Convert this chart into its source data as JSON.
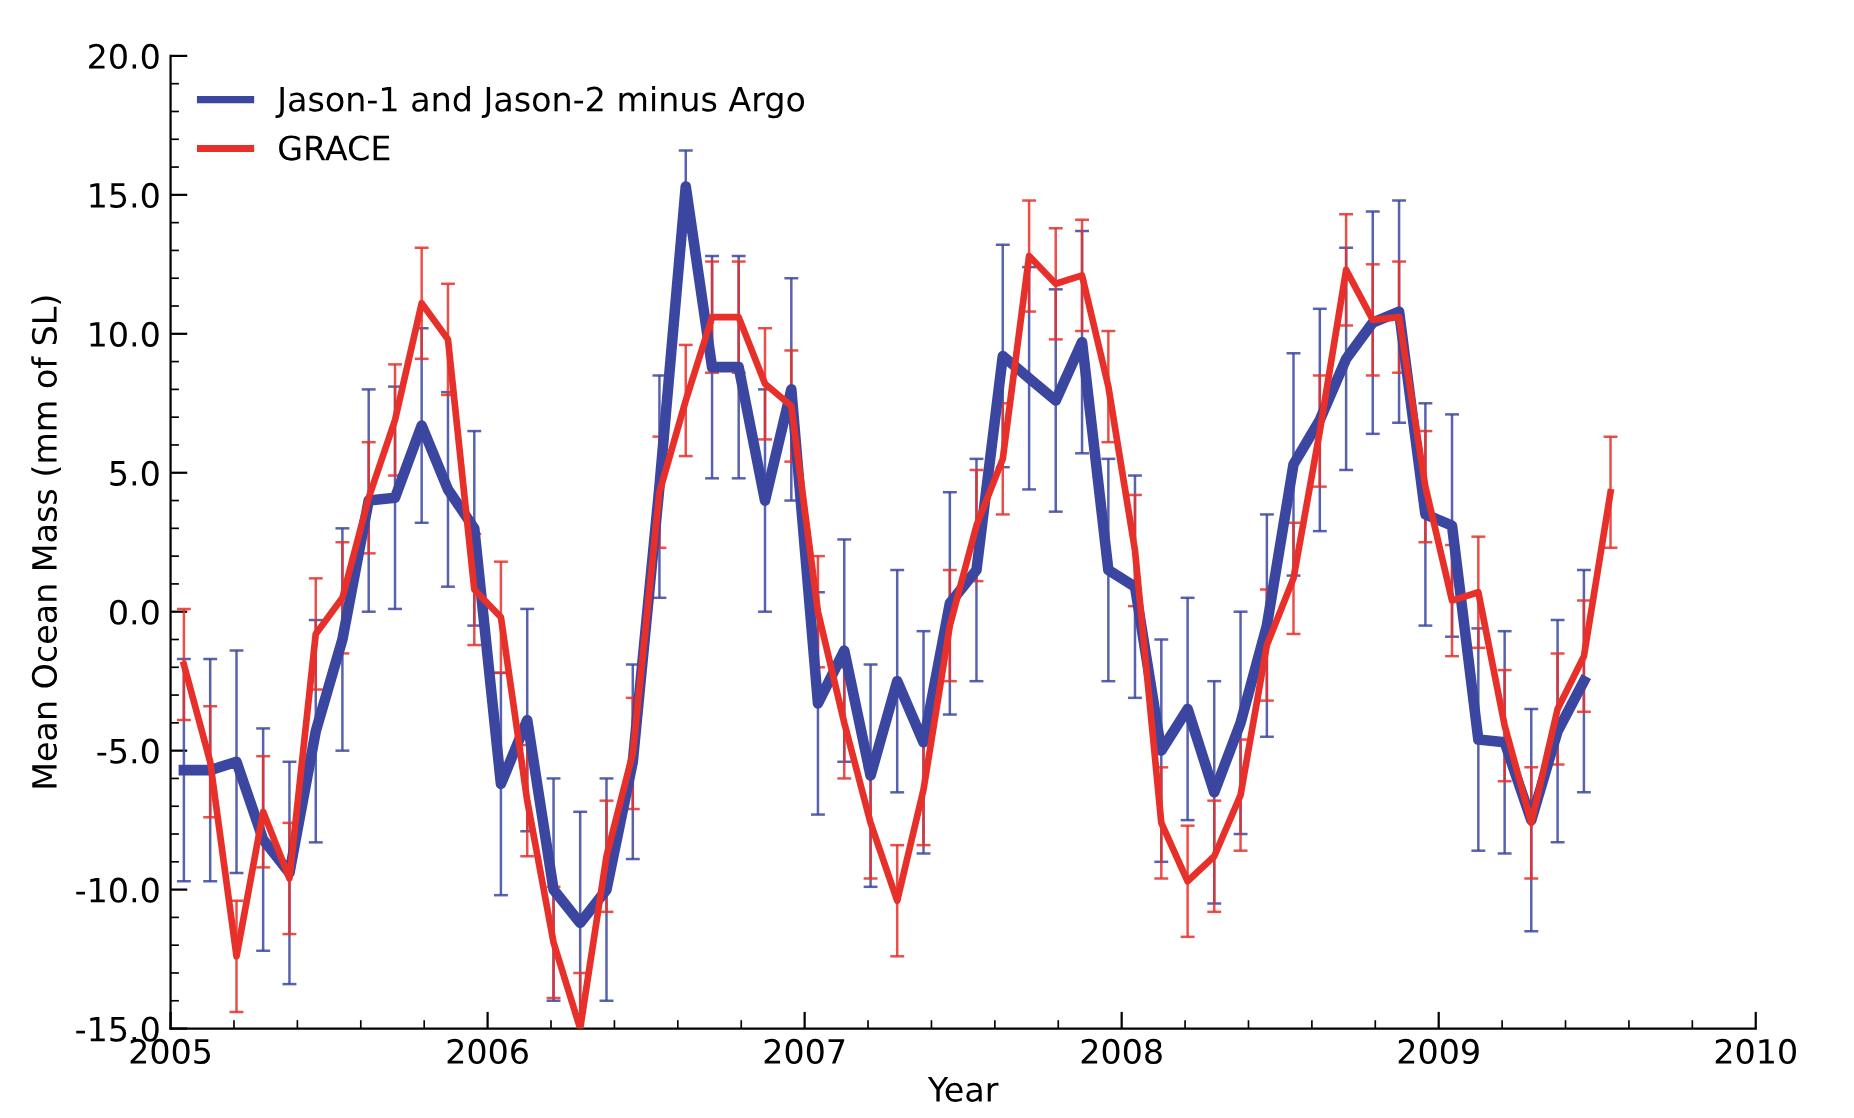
{
  "chart_data": {
    "type": "line",
    "xlabel": "Year",
    "ylabel": "Mean Ocean Mass (mm of SL)",
    "xlim": [
      2005,
      2010
    ],
    "xticks": [
      2005,
      2006,
      2007,
      2008,
      2009,
      2010
    ],
    "ylim": [
      -15,
      20
    ],
    "yticks": [
      {
        "value": -15,
        "label": "-15.0"
      },
      {
        "value": -10,
        "label": "-10.0"
      },
      {
        "value": -5,
        "label": "-5.0"
      },
      {
        "value": 0,
        "label": "0.0"
      },
      {
        "value": 5,
        "label": "5.0"
      },
      {
        "value": 10,
        "label": "10.0"
      },
      {
        "value": 15,
        "label": "15.0"
      },
      {
        "value": 20,
        "label": "20.0"
      }
    ],
    "grid": false,
    "legend": "top left",
    "marker": "none",
    "line_style": "solid",
    "series": [
      {
        "name": "Jason-1 and Jason-2 minus Argo",
        "color": "#3b46a0",
        "x": [
          2005.042,
          2005.125,
          2005.208,
          2005.292,
          2005.375,
          2005.458,
          2005.542,
          2005.625,
          2005.708,
          2005.792,
          2005.875,
          2005.958,
          2006.042,
          2006.125,
          2006.208,
          2006.292,
          2006.375,
          2006.458,
          2006.542,
          2006.625,
          2006.708,
          2006.792,
          2006.875,
          2006.958,
          2007.042,
          2007.125,
          2007.208,
          2007.292,
          2007.375,
          2007.458,
          2007.542,
          2007.625,
          2007.708,
          2007.792,
          2007.875,
          2007.958,
          2008.042,
          2008.125,
          2008.208,
          2008.292,
          2008.375,
          2008.458,
          2008.542,
          2008.625,
          2008.708,
          2008.792,
          2008.875,
          2008.958,
          2009.042,
          2009.125,
          2009.208,
          2009.292,
          2009.375,
          2009.458
        ],
        "values": [
          -5.7,
          -5.7,
          -5.4,
          -8.2,
          -9.4,
          -4.3,
          -1.0,
          4.0,
          4.1,
          6.7,
          4.4,
          3.0,
          -6.2,
          -3.9,
          -10.0,
          -11.2,
          -10.0,
          -5.4,
          4.5,
          15.3,
          8.8,
          8.8,
          4.0,
          8.0,
          -3.3,
          -1.4,
          -5.9,
          -2.5,
          -4.7,
          0.3,
          1.5,
          9.2,
          8.4,
          7.6,
          9.7,
          1.5,
          0.9,
          -5.0,
          -3.5,
          -6.5,
          -4.0,
          -0.5,
          5.3,
          6.9,
          9.1,
          10.4,
          10.8,
          3.5,
          3.1,
          -4.6,
          -4.7,
          -7.5,
          -4.3,
          -2.5
        ],
        "errors": [
          4,
          4,
          4,
          4,
          4,
          4,
          4,
          4,
          4,
          3.5,
          3.5,
          3.5,
          4,
          4,
          4,
          4,
          4,
          3.5,
          4,
          1.3,
          4,
          4,
          4,
          4,
          4,
          4,
          4,
          4,
          4,
          4,
          4,
          4,
          4,
          4,
          4,
          4,
          4,
          4,
          4,
          4,
          4,
          4,
          4,
          4,
          4,
          4,
          4,
          4,
          4,
          4,
          4,
          4,
          4,
          4
        ]
      },
      {
        "name": "GRACE",
        "color": "#e8302a",
        "x": [
          2005.042,
          2005.125,
          2005.208,
          2005.292,
          2005.375,
          2005.458,
          2005.542,
          2005.625,
          2005.708,
          2005.792,
          2005.875,
          2005.958,
          2006.042,
          2006.125,
          2006.208,
          2006.292,
          2006.375,
          2006.458,
          2006.542,
          2006.625,
          2006.708,
          2006.792,
          2006.875,
          2006.958,
          2007.042,
          2007.125,
          2007.208,
          2007.292,
          2007.375,
          2007.458,
          2007.542,
          2007.625,
          2007.708,
          2007.792,
          2007.875,
          2007.958,
          2008.042,
          2008.125,
          2008.208,
          2008.292,
          2008.375,
          2008.458,
          2008.542,
          2008.625,
          2008.708,
          2008.792,
          2008.875,
          2008.958,
          2009.042,
          2009.125,
          2009.208,
          2009.292,
          2009.375,
          2009.458,
          2009.542
        ],
        "values": [
          -1.9,
          -5.4,
          -12.4,
          -7.2,
          -9.6,
          -0.8,
          0.5,
          4.1,
          6.9,
          11.1,
          9.8,
          0.8,
          -0.2,
          -6.8,
          -11.9,
          -15.0,
          -8.8,
          -5.1,
          4.3,
          7.6,
          10.6,
          10.6,
          8.2,
          7.4,
          0.0,
          -4.0,
          -7.6,
          -10.4,
          -6.4,
          -0.5,
          3.1,
          5.5,
          12.8,
          11.8,
          12.1,
          8.1,
          2.2,
          -7.6,
          -9.7,
          -8.8,
          -6.6,
          -1.2,
          1.2,
          6.5,
          12.3,
          10.5,
          10.6,
          4.5,
          0.4,
          0.7,
          -4.1,
          -7.6,
          -3.5,
          -1.6,
          4.3
        ],
        "errors": [
          2,
          2,
          2,
          2,
          2,
          2,
          2,
          2,
          2,
          2,
          2,
          2,
          2,
          2,
          2,
          2,
          2,
          2,
          2,
          2,
          2,
          2,
          2,
          2,
          2,
          2,
          2,
          2,
          2,
          2,
          2,
          2,
          2,
          2,
          2,
          2,
          2,
          2,
          2,
          2,
          2,
          2,
          2,
          2,
          2,
          2,
          2,
          2,
          2,
          2,
          2,
          2,
          2,
          2,
          2
        ]
      }
    ]
  }
}
